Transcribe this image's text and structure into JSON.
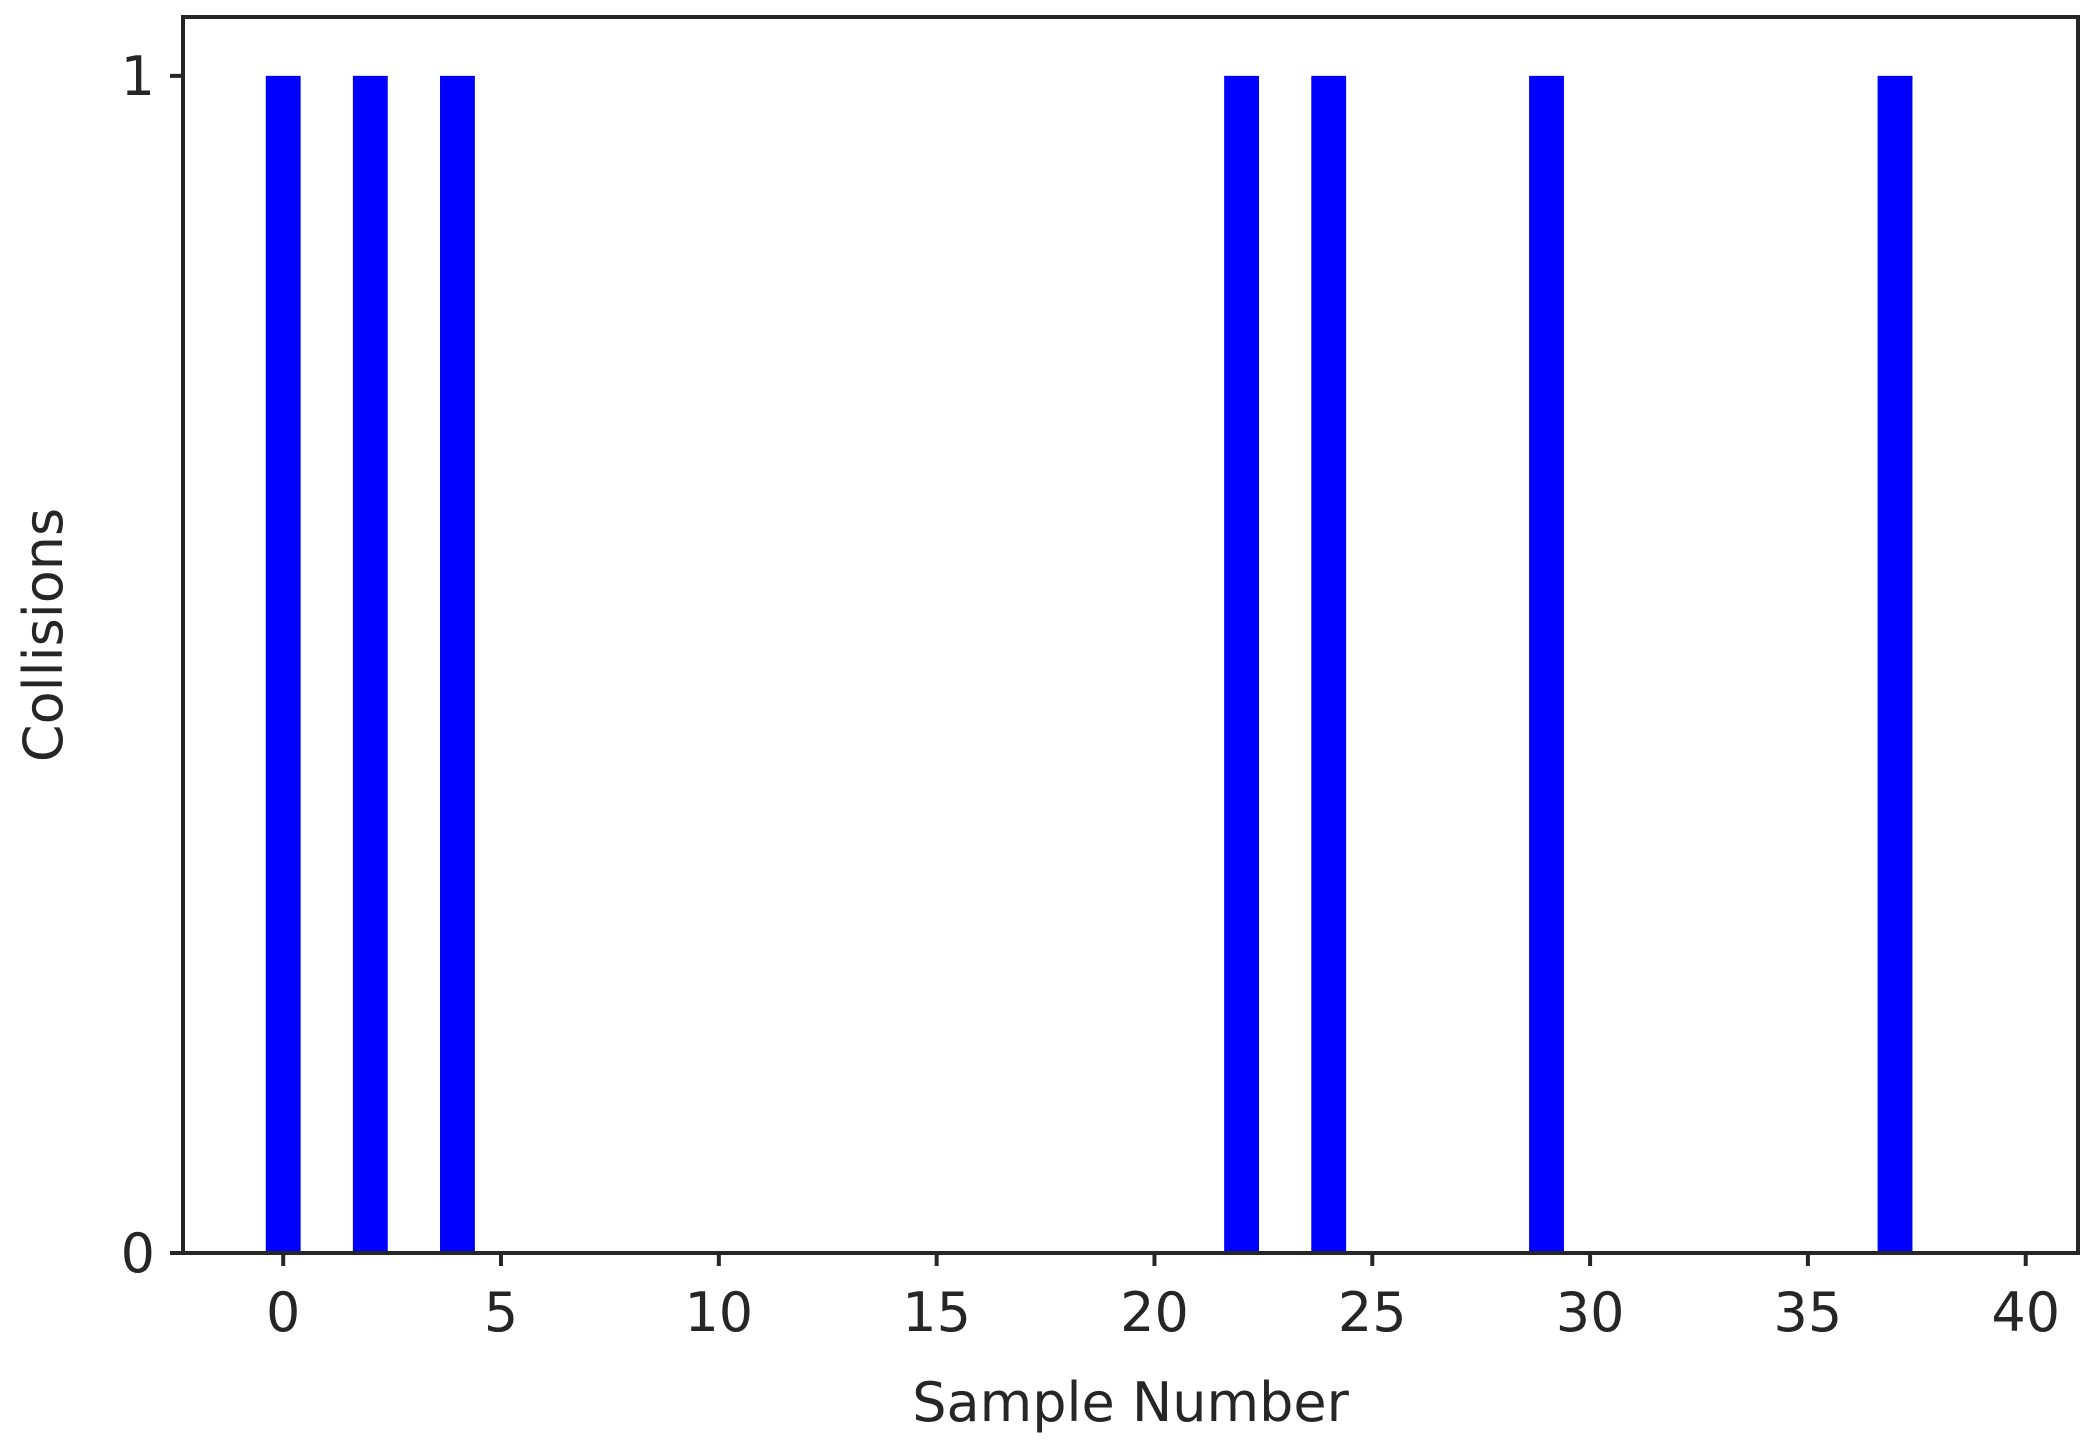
{
  "chart_data": {
    "type": "bar",
    "title": "",
    "xlabel": "Sample Number",
    "ylabel": "Collisions",
    "xlim": [
      -2.3,
      41.2
    ],
    "ylim": [
      0,
      1.05
    ],
    "xticks": [
      0,
      5,
      10,
      15,
      20,
      25,
      30,
      35,
      40
    ],
    "xtick_labels": [
      "0",
      "5",
      "10",
      "15",
      "20",
      "25",
      "30",
      "35",
      "40"
    ],
    "yticks": [
      0,
      1
    ],
    "ytick_labels": [
      "0",
      "1"
    ],
    "grid": false,
    "legend": false,
    "bar_color": "#0000ff",
    "bar_width": 0.8,
    "x": [
      0,
      2,
      4,
      22,
      24,
      29,
      37
    ],
    "values": [
      1,
      1,
      1,
      1,
      1,
      1,
      1
    ]
  }
}
